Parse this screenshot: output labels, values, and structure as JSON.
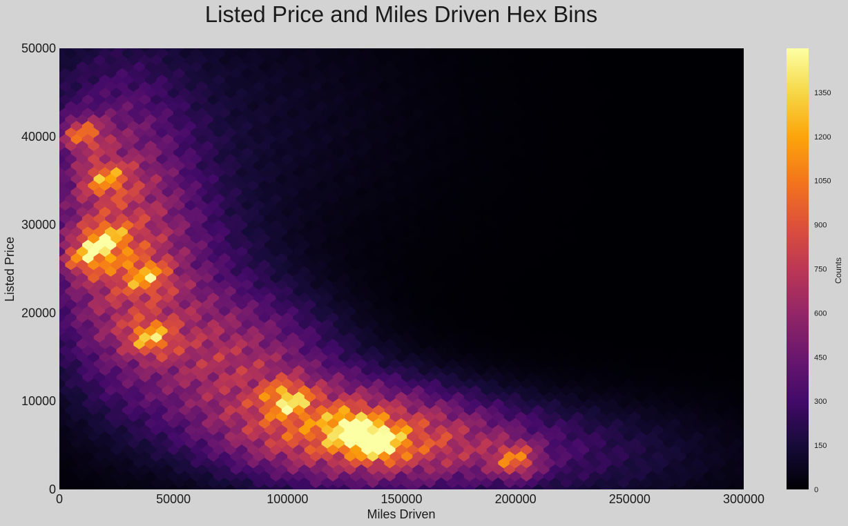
{
  "chart_data": {
    "type": "heatmap",
    "subtype": "hexbin",
    "title": "Listed Price and Miles Driven Hex Bins",
    "xlabel": "Miles Driven",
    "ylabel": "Listed Price",
    "xlim": [
      0,
      300000
    ],
    "ylim": [
      0,
      50000
    ],
    "xticks": [
      "0",
      "50000",
      "100000",
      "150000",
      "200000",
      "250000",
      "300000"
    ],
    "yticks": [
      "0",
      "10000",
      "20000",
      "30000",
      "40000",
      "50000"
    ],
    "grid": false,
    "colormap": "inferno",
    "colorbar": {
      "label": "Counts",
      "range": [
        0,
        1500
      ],
      "ticks": [
        "0",
        "150",
        "300",
        "450",
        "600",
        "750",
        "900",
        "1050",
        "1200",
        "1350"
      ],
      "position": "right"
    },
    "density_peaks": [
      {
        "x": 140000,
        "y": 5500,
        "count": 1450
      },
      {
        "x": 128000,
        "y": 7000,
        "count": 1400
      },
      {
        "x": 100000,
        "y": 10500,
        "count": 1150
      },
      {
        "x": 200000,
        "y": 3500,
        "count": 1100
      },
      {
        "x": 20000,
        "y": 28500,
        "count": 1150
      },
      {
        "x": 10000,
        "y": 40500,
        "count": 1100
      },
      {
        "x": 40000,
        "y": 17500,
        "count": 1100
      },
      {
        "x": 20000,
        "y": 35500,
        "count": 950
      },
      {
        "x": 12000,
        "y": 26500,
        "count": 1050
      },
      {
        "x": 38000,
        "y": 24500,
        "count": 900
      }
    ]
  }
}
